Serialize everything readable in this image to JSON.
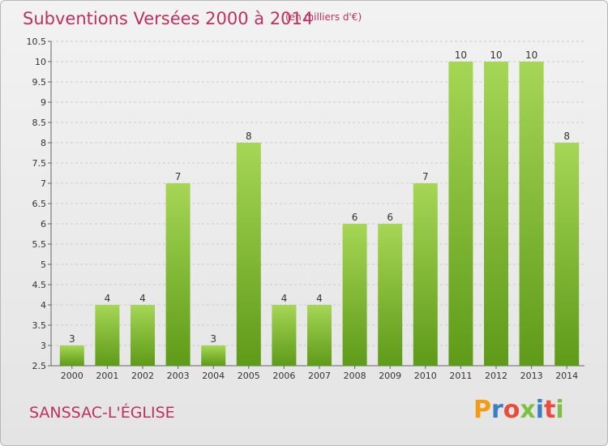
{
  "header": {
    "title": "Subventions Versées 2000 à 2014",
    "unit_note": "(en milliers d'€)"
  },
  "footer": {
    "city": "SANSSAC-L'ÉGLISE",
    "logo_text": "Proxiti",
    "logo_colors": [
      "#f39c12",
      "#3a7fc1",
      "#e84c3d",
      "#7cc242",
      "#3a7fc1",
      "#e84c3d",
      "#7cc242"
    ]
  },
  "colors": {
    "bar_light": "#a6d655",
    "bar_dark": "#5e9b18",
    "title": "#c0305e",
    "grid": "#cccccc"
  },
  "chart_data": {
    "type": "bar",
    "title": "Subventions Versées 2000 à 2014",
    "subtitle": "(en milliers d'€)",
    "xlabel": "",
    "ylabel": "",
    "categories": [
      "2000",
      "2001",
      "2002",
      "2003",
      "2004",
      "2005",
      "2006",
      "2007",
      "2008",
      "2009",
      "2010",
      "2011",
      "2012",
      "2013",
      "2014"
    ],
    "values": [
      3,
      4,
      4,
      7,
      3,
      8,
      4,
      4,
      6,
      6,
      7,
      10,
      10,
      10,
      8
    ],
    "ylim": [
      2.5,
      10.5
    ],
    "yticks": [
      "2.5",
      "3",
      "3.5",
      "4",
      "4.5",
      "5",
      "5.5",
      "6",
      "6.5",
      "7",
      "7.5",
      "8",
      "8.5",
      "9",
      "9.5",
      "10",
      "10.5"
    ],
    "grid": true,
    "data_labels": true
  }
}
